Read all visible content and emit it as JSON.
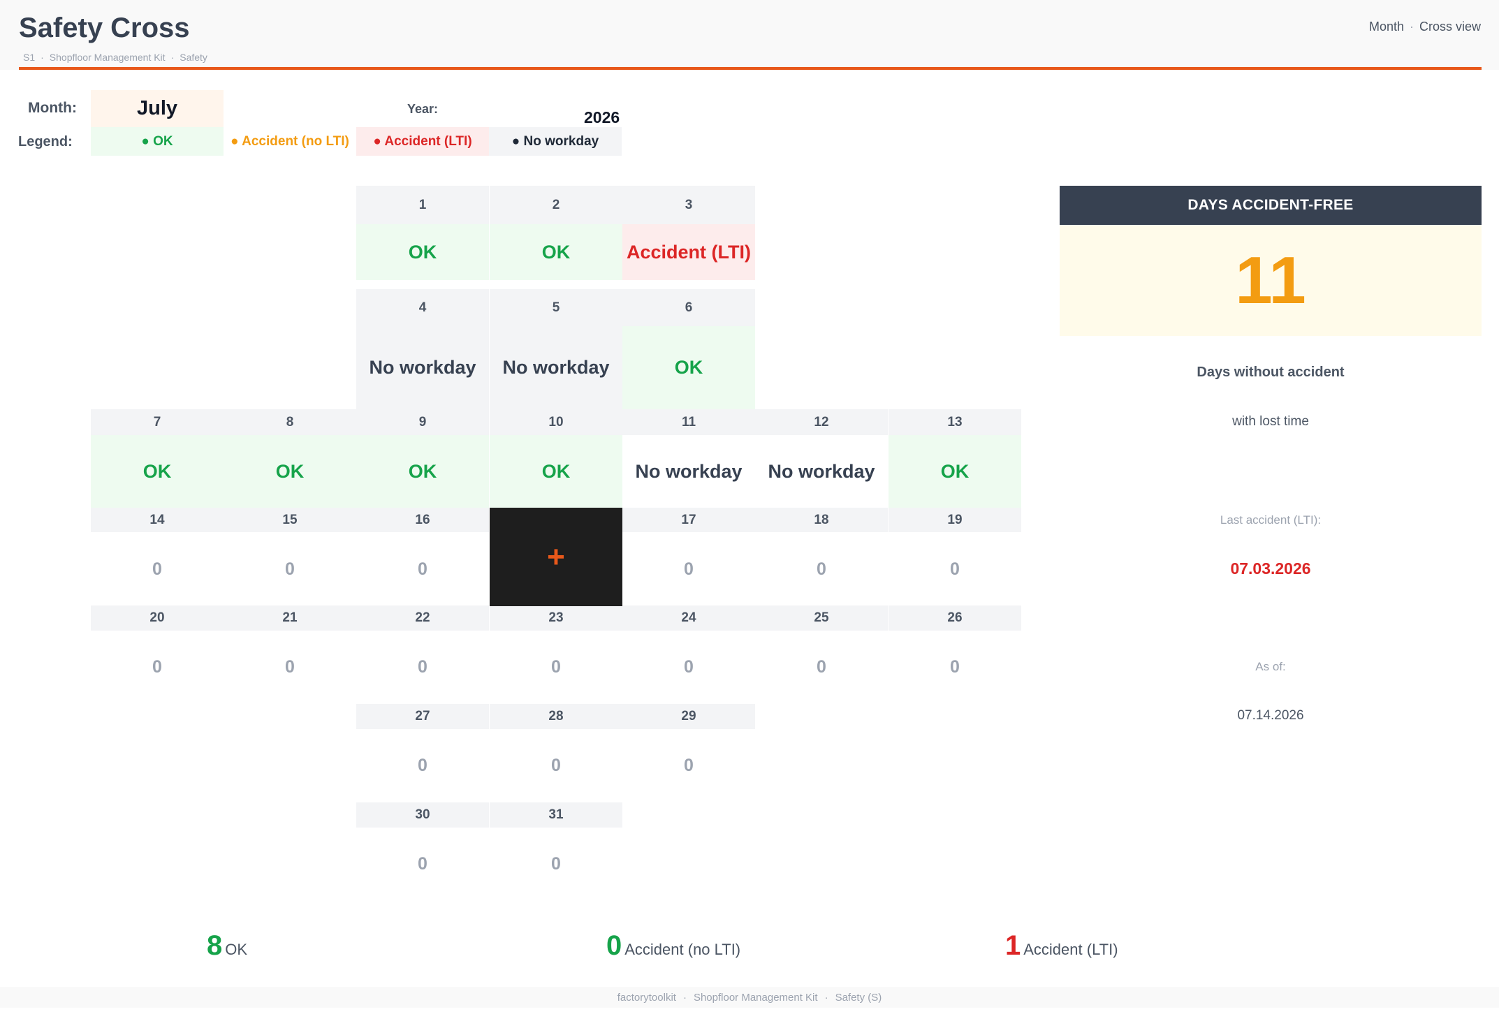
{
  "header": {
    "title": "Safety Cross",
    "breadcrumb": [
      "S1",
      "Shopfloor Management Kit",
      "Safety"
    ],
    "view_links": [
      "Month",
      "Cross view"
    ]
  },
  "form": {
    "month_label": "Month:",
    "month_value": "July",
    "year_label": "Year:",
    "year_value": "2026",
    "legend_label": "Legend:",
    "legend": {
      "ok": "● OK",
      "no_lti": "● Accident (no LTI)",
      "lti": "● Accident (LTI)",
      "no_workday": "● No workday"
    }
  },
  "calendar": {
    "days": [
      {
        "day": "1",
        "status": "OK",
        "kind": "ok"
      },
      {
        "day": "2",
        "status": "OK",
        "kind": "ok"
      },
      {
        "day": "3",
        "status": "Accident (LTI)",
        "kind": "lti"
      },
      {
        "day": "4",
        "status": "No workday",
        "kind": "nowork"
      },
      {
        "day": "5",
        "status": "No workday",
        "kind": "nowork"
      },
      {
        "day": "6",
        "status": "OK",
        "kind": "ok"
      },
      {
        "day": "7",
        "status": "OK",
        "kind": "ok"
      },
      {
        "day": "8",
        "status": "OK",
        "kind": "ok"
      },
      {
        "day": "9",
        "status": "OK",
        "kind": "ok"
      },
      {
        "day": "10",
        "status": "OK",
        "kind": "ok"
      },
      {
        "day": "11",
        "status": "No workday",
        "kind": "nowork-w"
      },
      {
        "day": "12",
        "status": "No workday",
        "kind": "nowork-w"
      },
      {
        "day": "13",
        "status": "OK",
        "kind": "ok"
      },
      {
        "day": "14",
        "status": "0",
        "kind": "zero"
      },
      {
        "day": "15",
        "status": "0",
        "kind": "zero"
      },
      {
        "day": "16",
        "status": "0",
        "kind": "zero"
      },
      {
        "day": "17",
        "status": "0",
        "kind": "zero"
      },
      {
        "day": "18",
        "status": "0",
        "kind": "zero"
      },
      {
        "day": "19",
        "status": "0",
        "kind": "zero"
      },
      {
        "day": "20",
        "status": "0",
        "kind": "zero"
      },
      {
        "day": "21",
        "status": "0",
        "kind": "zero"
      },
      {
        "day": "22",
        "status": "0",
        "kind": "zero"
      },
      {
        "day": "23",
        "status": "0",
        "kind": "zero"
      },
      {
        "day": "24",
        "status": "0",
        "kind": "zero"
      },
      {
        "day": "25",
        "status": "0",
        "kind": "zero"
      },
      {
        "day": "26",
        "status": "0",
        "kind": "zero"
      },
      {
        "day": "27",
        "status": "0",
        "kind": "zero"
      },
      {
        "day": "28",
        "status": "0",
        "kind": "zero"
      },
      {
        "day": "29",
        "status": "0",
        "kind": "zero"
      },
      {
        "day": "30",
        "status": "0",
        "kind": "zero"
      },
      {
        "day": "31",
        "status": "0",
        "kind": "zero"
      }
    ],
    "center_symbol": "+"
  },
  "panel": {
    "header": "DAYS ACCIDENT-FREE",
    "value": "11",
    "sub1": "Days without accident",
    "sub2": "with lost time",
    "last_label": "Last accident (LTI):",
    "last_date": "07.03.2026",
    "asof_label": "As of:",
    "asof_date": "07.14.2026"
  },
  "totals": {
    "ok_count": "8",
    "ok_label": "OK",
    "nolti_count": "0",
    "nolti_label": "Accident (no LTI)",
    "lti_count": "1",
    "lti_label": "Accident (LTI)"
  },
  "footer": [
    "factorytoolkit",
    "Shopfloor Management Kit",
    "Safety (S)"
  ],
  "colors": {
    "accent": "#e8581a",
    "ok": "#16a34a",
    "no_lti": "#f39c12",
    "lti": "#dc2626",
    "panel_header_bg": "#374151"
  }
}
